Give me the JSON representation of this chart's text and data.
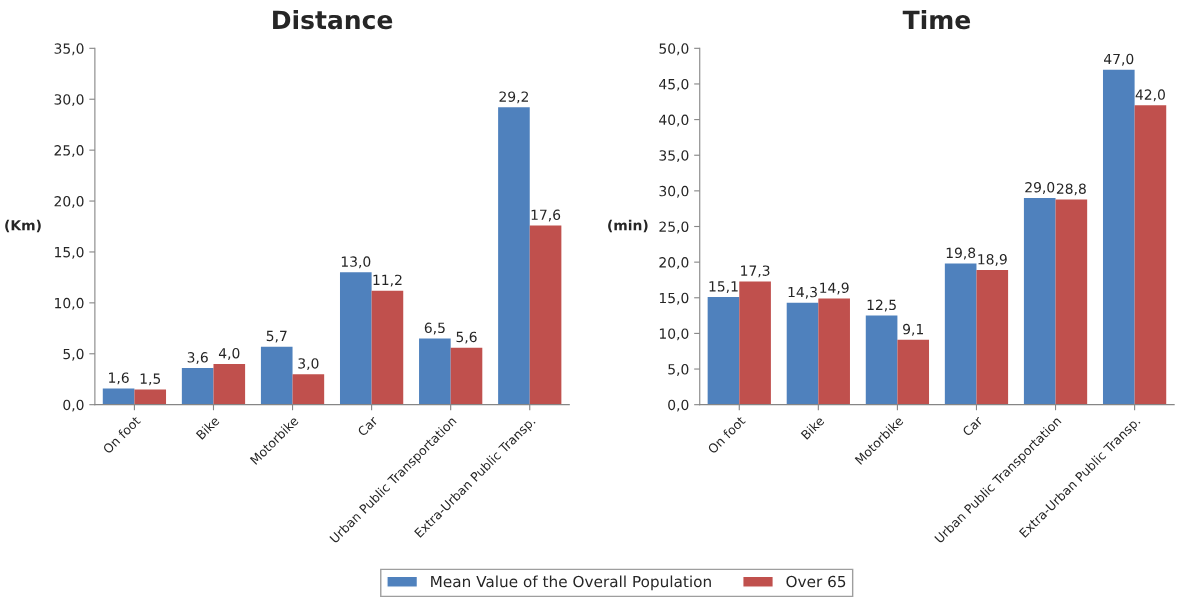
{
  "chart_data": [
    {
      "type": "bar",
      "title": "Distance",
      "ylabel": "(Km)",
      "categories": [
        "On foot",
        "Bike",
        "Motorbike",
        "Car",
        "Urban Public Transportation",
        "Extra-Urban Public Transp."
      ],
      "series": [
        {
          "color": "#4f81bd",
          "values": [
            1.6,
            3.6,
            5.7,
            13.0,
            6.5,
            29.2
          ],
          "value_labels": [
            "1,6",
            "3,6",
            "5,7",
            "13,0",
            "6,5",
            "29,2"
          ]
        },
        {
          "color": "#c0504d",
          "values": [
            1.5,
            4.0,
            3.0,
            11.2,
            5.6,
            17.6
          ],
          "value_labels": [
            "1,5",
            "4,0",
            "3,0",
            "11,2",
            "5,6",
            "17,6"
          ]
        }
      ],
      "ylim": [
        0,
        35
      ],
      "yticks": [
        {
          "value": 0,
          "label": "0,0"
        },
        {
          "value": 5,
          "label": "5,0"
        },
        {
          "value": 10,
          "label": "10,0"
        },
        {
          "value": 15,
          "label": "15,0"
        },
        {
          "value": 20,
          "label": "20,0"
        },
        {
          "value": 25,
          "label": "25,0"
        },
        {
          "value": 30,
          "label": "30,0"
        },
        {
          "value": 35,
          "label": "35,0"
        }
      ],
      "grid": false
    },
    {
      "type": "bar",
      "title": "Time",
      "ylabel": "(min)",
      "categories": [
        "On foot",
        "Bike",
        "Motorbike",
        "Car",
        "Urban Public Transportation",
        "Extra-Urban Public Transp."
      ],
      "series": [
        {
          "name": "Mean Value of the Overall Population",
          "color": "#4f81bd",
          "values": [
            15.1,
            14.3,
            12.5,
            19.8,
            29.0,
            47.0
          ],
          "value_labels": [
            "15,1",
            "14,3",
            "12,5",
            "19,8",
            "29,0",
            "47,0"
          ]
        },
        {
          "name": "Over 65",
          "color": "#c0504d",
          "values": [
            17.3,
            14.9,
            9.1,
            18.9,
            28.8,
            42.0
          ],
          "value_labels": [
            "17,3",
            "14,9",
            "9,1",
            "18,9",
            "28,8",
            "42,0"
          ]
        }
      ],
      "ylim": [
        0,
        50
      ],
      "yticks": [
        {
          "value": 0,
          "label": "0,0"
        },
        {
          "value": 5,
          "label": "5,0"
        },
        {
          "value": 10,
          "label": "10,0"
        },
        {
          "value": 15,
          "label": "15,0"
        },
        {
          "value": 20,
          "label": "20,0"
        },
        {
          "value": 25,
          "label": "25,0"
        },
        {
          "value": 30,
          "label": "30,0"
        },
        {
          "value": 35,
          "label": "35,0"
        },
        {
          "value": 40,
          "label": "40,0"
        },
        {
          "value": 45,
          "label": "45,0"
        },
        {
          "value": 50,
          "label": "50,0"
        }
      ],
      "grid": false,
      "legend": "bottom"
    }
  ]
}
